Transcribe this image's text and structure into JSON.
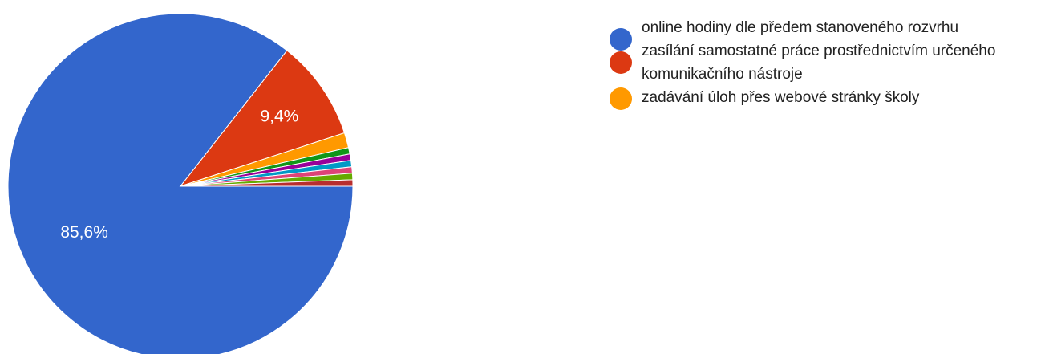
{
  "chart_data": {
    "type": "pie",
    "categories": [
      "online hodiny dle předem stanoveného rozvrhu",
      "zasílání samostatné práce prostřednictvím určeného komunikačního nástroje",
      "zadávání úloh přes webové stránky školy",
      null,
      null,
      null,
      null,
      null,
      null
    ],
    "values": [
      85.6,
      9.4,
      1.4,
      0.6,
      0.6,
      0.6,
      0.6,
      0.6,
      0.6
    ],
    "value_labels": [
      "85,6%",
      "9,4%",
      null,
      null,
      null,
      null,
      null,
      null,
      null
    ],
    "colors": [
      "#3366cc",
      "#dc3912",
      "#ff9900",
      "#109618",
      "#990099",
      "#0099c6",
      "#dd4477",
      "#66aa00",
      "#b82e2e"
    ],
    "legend": "right"
  }
}
